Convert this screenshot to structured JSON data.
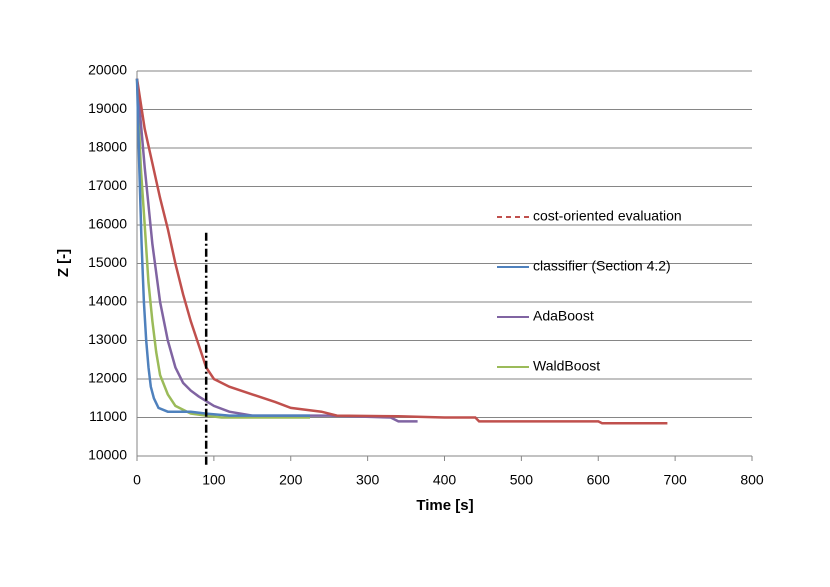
{
  "chart_data": {
    "type": "line",
    "x_label": "Time [s]",
    "y_label": "Z [-]",
    "xlim": [
      0,
      800
    ],
    "xticks": [
      0,
      100,
      200,
      300,
      400,
      500,
      600,
      700,
      800
    ],
    "ylim": [
      10000,
      20000
    ],
    "yticks": [
      10000,
      11000,
      12000,
      13000,
      14000,
      15000,
      16000,
      17000,
      18000,
      19000,
      20000
    ],
    "grid": true,
    "legend": "right",
    "vline": {
      "x": 90,
      "y": [
        9770,
        15800
      ]
    },
    "series": [
      {
        "name": "cost-oriented evaluation",
        "color": "#c0504d",
        "x": [
          0,
          10,
          20,
          30,
          40,
          50,
          60,
          70,
          80,
          90,
          100,
          120,
          150,
          180,
          200,
          240,
          260,
          340,
          400,
          440,
          445,
          600,
          605,
          690
        ],
        "values": [
          19800,
          18500,
          17600,
          16700,
          15900,
          15000,
          14200,
          13500,
          12900,
          12300,
          12000,
          11800,
          11600,
          11400,
          11250,
          11150,
          11050,
          11030,
          11000,
          11000,
          10900,
          10900,
          10850,
          10850
        ]
      },
      {
        "name": "classifier (Section 4.2)",
        "color": "#4f81bd",
        "x": [
          0,
          3,
          6,
          9,
          12,
          15,
          18,
          22,
          28,
          40,
          70,
          90,
          120,
          200,
          225
        ],
        "values": [
          19800,
          17500,
          15500,
          14000,
          13000,
          12300,
          11800,
          11500,
          11250,
          11150,
          11150,
          11100,
          11050,
          11050,
          11050
        ]
      },
      {
        "name": "AdaBoost",
        "color": "#8064a2",
        "x": [
          0,
          10,
          20,
          30,
          40,
          50,
          60,
          70,
          80,
          100,
          120,
          150,
          250,
          330,
          340,
          365
        ],
        "values": [
          19800,
          17500,
          15500,
          14000,
          13000,
          12300,
          11900,
          11700,
          11550,
          11300,
          11150,
          11050,
          11050,
          11000,
          10900,
          10900
        ]
      },
      {
        "name": "WaldBoost",
        "color": "#9bbb59",
        "x": [
          0,
          5,
          10,
          15,
          20,
          25,
          30,
          40,
          50,
          70,
          90,
          110,
          150,
          225
        ],
        "values": [
          19800,
          17500,
          16000,
          14500,
          13500,
          12700,
          12100,
          11600,
          11300,
          11100,
          11050,
          11000,
          11000,
          11000
        ]
      }
    ]
  }
}
